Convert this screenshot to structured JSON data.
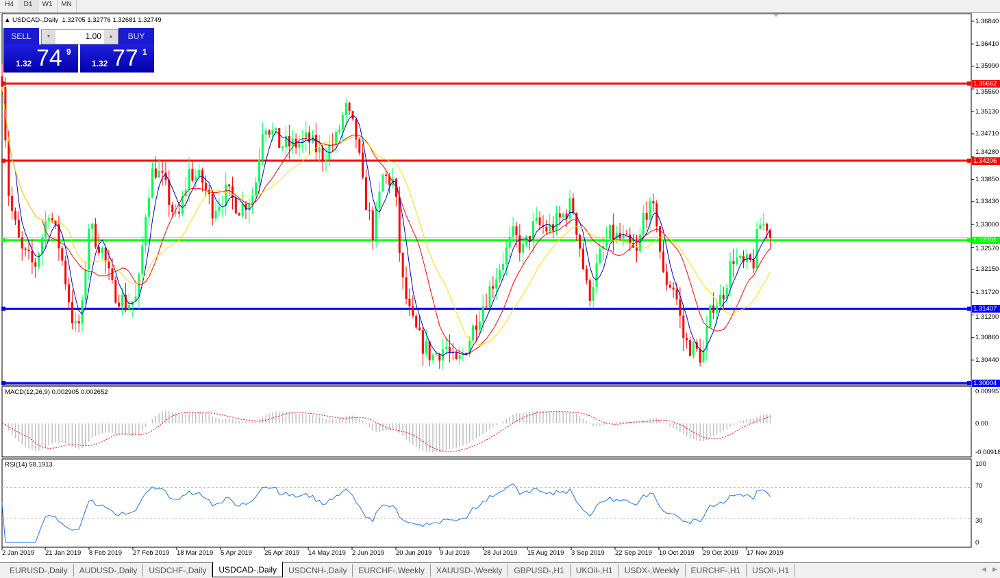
{
  "timeframes": [
    {
      "label": "H4",
      "active": false
    },
    {
      "label": "D1",
      "active": true
    },
    {
      "label": "W1",
      "active": false
    },
    {
      "label": "MN",
      "active": false
    }
  ],
  "chart": {
    "symbol_title": "USDCAD-,Daily",
    "ohlc": "1.32705 1.32776 1.32681 1.32749"
  },
  "one_click": {
    "sell_label": "SELL",
    "buy_label": "BUY",
    "lot": "1.00",
    "sell": {
      "prefix": "1.32",
      "big": "74",
      "sup": "9"
    },
    "buy": {
      "prefix": "1.32",
      "big": "77",
      "sup": "1"
    }
  },
  "price_axis": [
    "1.36840",
    "1.36410",
    "1.35990",
    "1.35560",
    "1.35130",
    "1.34710",
    "1.34280",
    "1.33850",
    "1.33430",
    "1.33000",
    "1.32570",
    "1.32150",
    "1.31720",
    "1.31290",
    "1.30860",
    "1.30440"
  ],
  "levels": [
    {
      "price": "1.35662",
      "color": "#ff0000"
    },
    {
      "price": "1.34206",
      "color": "#ff0000"
    },
    {
      "price": "1.32701",
      "color": "#00ff00"
    },
    {
      "price": "1.31407",
      "color": "#0000ff"
    },
    {
      "price": "1.30004",
      "color": "#0000ff"
    }
  ],
  "current_price": "1.32749",
  "macd": {
    "label": "MACD(12,26,9) 0.002905 0.002652",
    "axis": [
      "0.009957",
      "0.00",
      "-0.009186"
    ]
  },
  "rsi": {
    "label": "RSI(14) 58.1913",
    "axis": [
      "100",
      "70",
      "30",
      "0"
    ]
  },
  "date_axis": [
    "2 Jan 2019",
    "21 Jan 2019",
    "8 Feb 2019",
    "27 Feb 2019",
    "18 Mar 2019",
    "5 Apr 2019",
    "25 Apr 2019",
    "14 May 2019",
    "2 Jun 2019",
    "20 Jun 2019",
    "9 Jul 2019",
    "28 Jul 2019",
    "15 Aug 2019",
    "3 Sep 2019",
    "22 Sep 2019",
    "10 Oct 2019",
    "29 Oct 2019",
    "17 Nov 2019"
  ],
  "tabs": [
    {
      "label": "EURUSD-,Daily"
    },
    {
      "label": "AUDUSD-,Daily"
    },
    {
      "label": "USDCHF-,Daily"
    },
    {
      "label": "USDCAD-,Daily",
      "active": true
    },
    {
      "label": "USDCNH-,Daily"
    },
    {
      "label": "EURCHF-,Weekly"
    },
    {
      "label": "XAUUSD-,Weekly"
    },
    {
      "label": "GBPUSD-,H1"
    },
    {
      "label": "UKOil-,H1"
    },
    {
      "label": "USDX-,Weekly"
    },
    {
      "label": "EURCHF-,H1"
    },
    {
      "label": "USOil-,H1"
    }
  ],
  "colors": {
    "bull": "#00ff55",
    "bear": "#ff0000",
    "ma_fast": "#0000cc",
    "ma_mid": "#ff0000",
    "ma_slow": "#ffdd00",
    "rsi": "#1e73e8",
    "macd_hist": "#c0c0c0",
    "macd_signal": "#ff0000"
  },
  "chart_data": {
    "type": "candlestick",
    "symbol": "USDCAD",
    "timeframe": "Daily",
    "ylim": [
      1.30004,
      1.3684
    ],
    "close_path": [
      [
        "2019-01-02",
        1.358
      ],
      [
        "2019-01-05",
        1.335
      ],
      [
        "2019-01-10",
        1.325
      ],
      [
        "2019-01-16",
        1.322
      ],
      [
        "2019-01-22",
        1.333
      ],
      [
        "2019-01-27",
        1.325
      ],
      [
        "2019-02-02",
        1.31
      ],
      [
        "2019-02-05",
        1.312
      ],
      [
        "2019-02-08",
        1.33
      ],
      [
        "2019-02-14",
        1.325
      ],
      [
        "2019-02-18",
        1.318
      ],
      [
        "2019-02-24",
        1.315
      ],
      [
        "2019-03-01",
        1.316
      ],
      [
        "2019-03-05",
        1.335
      ],
      [
        "2019-03-08",
        1.341
      ],
      [
        "2019-03-12",
        1.338
      ],
      [
        "2019-03-18",
        1.33
      ],
      [
        "2019-03-23",
        1.34
      ],
      [
        "2019-03-29",
        1.338
      ],
      [
        "2019-04-02",
        1.333
      ],
      [
        "2019-04-08",
        1.336
      ],
      [
        "2019-04-14",
        1.333
      ],
      [
        "2019-04-20",
        1.336
      ],
      [
        "2019-04-24",
        1.35
      ],
      [
        "2019-05-01",
        1.345
      ],
      [
        "2019-05-07",
        1.345
      ],
      [
        "2019-05-13",
        1.346
      ],
      [
        "2019-05-19",
        1.343
      ],
      [
        "2019-05-25",
        1.346
      ],
      [
        "2019-05-29",
        1.352
      ],
      [
        "2019-06-03",
        1.346
      ],
      [
        "2019-06-05",
        1.338
      ],
      [
        "2019-06-10",
        1.328
      ],
      [
        "2019-06-14",
        1.339
      ],
      [
        "2019-06-19",
        1.338
      ],
      [
        "2019-06-22",
        1.32
      ],
      [
        "2019-06-26",
        1.312
      ],
      [
        "2019-06-30",
        1.308
      ],
      [
        "2019-07-05",
        1.305
      ],
      [
        "2019-07-11",
        1.307
      ],
      [
        "2019-07-15",
        1.303
      ],
      [
        "2019-07-19",
        1.306
      ],
      [
        "2019-07-24",
        1.312
      ],
      [
        "2019-07-30",
        1.318
      ],
      [
        "2019-08-05",
        1.324
      ],
      [
        "2019-08-09",
        1.328
      ],
      [
        "2019-08-13",
        1.325
      ],
      [
        "2019-08-18",
        1.33
      ],
      [
        "2019-08-24",
        1.329
      ],
      [
        "2019-08-29",
        1.331
      ],
      [
        "2019-09-03",
        1.334
      ],
      [
        "2019-09-06",
        1.327
      ],
      [
        "2019-09-10",
        1.316
      ],
      [
        "2019-09-15",
        1.324
      ],
      [
        "2019-09-19",
        1.328
      ],
      [
        "2019-09-25",
        1.327
      ],
      [
        "2019-10-01",
        1.324
      ],
      [
        "2019-10-04",
        1.333
      ],
      [
        "2019-10-09",
        1.332
      ],
      [
        "2019-10-12",
        1.32
      ],
      [
        "2019-10-17",
        1.318
      ],
      [
        "2019-10-21",
        1.308
      ],
      [
        "2019-10-26",
        1.306
      ],
      [
        "2019-10-29",
        1.305
      ],
      [
        "2019-11-02",
        1.315
      ],
      [
        "2019-11-06",
        1.316
      ],
      [
        "2019-11-11",
        1.324
      ],
      [
        "2019-11-15",
        1.322
      ],
      [
        "2019-11-20",
        1.323
      ],
      [
        "2019-11-22",
        1.33
      ],
      [
        "2019-11-26",
        1.33
      ],
      [
        "2019-11-28",
        1.32749
      ]
    ],
    "last": {
      "open": 1.32705,
      "high": 1.32776,
      "low": 1.32681,
      "close": 1.32749
    },
    "horizontal_levels": [
      1.35662,
      1.34206,
      1.32701,
      1.31407,
      1.30004
    ],
    "moving_averages": [
      "fast (blue)",
      "medium (red)",
      "slow (yellow)"
    ],
    "macd": {
      "params": [
        12,
        26,
        9
      ],
      "main": 0.002905,
      "signal": 0.002652,
      "ylim": [
        -0.009186,
        0.009957
      ]
    },
    "rsi": {
      "period": 14,
      "value": 58.1913,
      "levels": [
        70,
        30
      ],
      "ylim": [
        0,
        100
      ]
    }
  }
}
